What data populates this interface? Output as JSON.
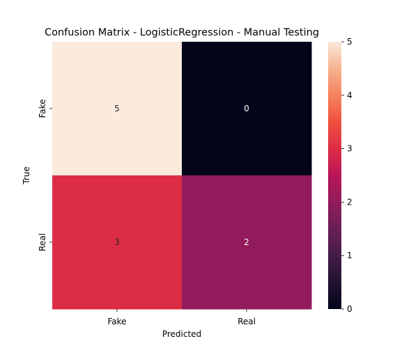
{
  "chart_data": {
    "type": "heatmap",
    "title": "Confusion Matrix - LogisticRegression - Manual Testing",
    "xlabel": "Predicted",
    "ylabel": "True",
    "x_categories": [
      "Fake",
      "Real"
    ],
    "y_categories": [
      "Fake",
      "Real"
    ],
    "values": [
      [
        5,
        0
      ],
      [
        3,
        2
      ]
    ],
    "annotations": [
      [
        "5",
        "0"
      ],
      [
        "3",
        "2"
      ]
    ],
    "colorbar": {
      "range": [
        0,
        5
      ],
      "ticks": [
        0,
        1,
        2,
        3,
        4,
        5
      ],
      "tick_labels": [
        "0",
        "1",
        "2",
        "3",
        "4",
        "5"
      ],
      "colormap": "rocket"
    },
    "grid": false,
    "legend": "colorbar right"
  }
}
